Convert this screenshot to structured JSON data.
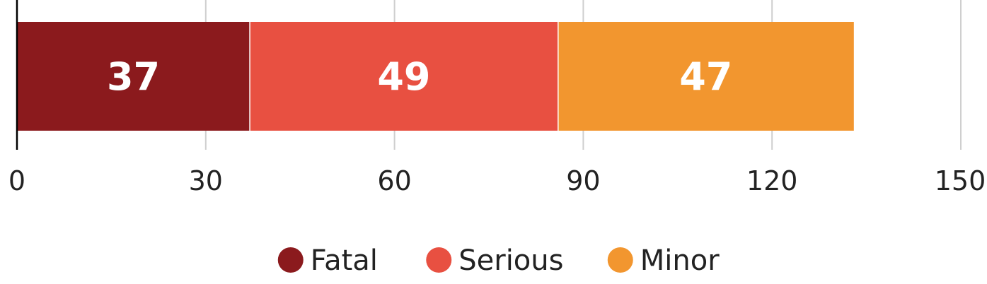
{
  "chart_data": {
    "type": "bar",
    "orientation": "horizontal",
    "stacked": true,
    "title": "",
    "xlabel": "",
    "ylabel": "",
    "xlim": [
      0,
      150
    ],
    "ticks": [
      0,
      30,
      60,
      90,
      120,
      150
    ],
    "tick_labels": [
      "0",
      "30",
      "60",
      "90",
      "120",
      "150"
    ],
    "grid": true,
    "legend_position": "bottom",
    "series": [
      {
        "name": "Fatal",
        "value": 37,
        "label": "37",
        "color": "#8b1a1d"
      },
      {
        "name": "Serious",
        "value": 49,
        "label": "49",
        "color": "#e85041"
      },
      {
        "name": "Minor",
        "value": 47,
        "label": "47",
        "color": "#f2962f"
      }
    ]
  }
}
